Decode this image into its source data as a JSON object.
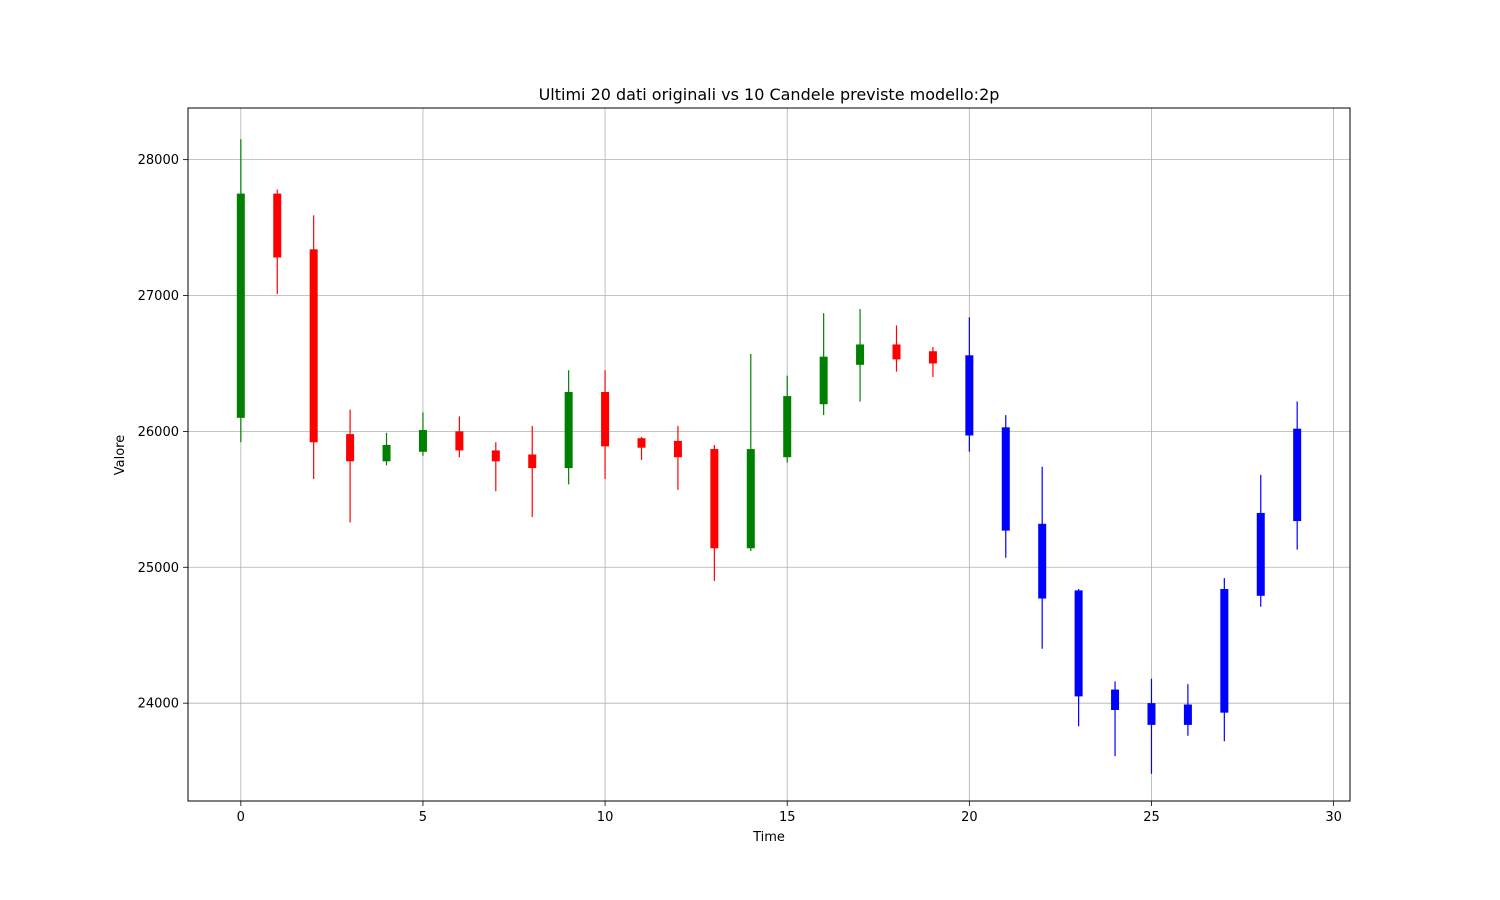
{
  "chart_data": {
    "type": "candlestick",
    "title": "Ultimi 20 dati originali vs 10 Candele previste modello:2p",
    "xlabel": "Time",
    "ylabel": "Valore",
    "xlim": [
      -1.45,
      30.45
    ],
    "ylim": [
      23280,
      28380
    ],
    "xticks": [
      0,
      5,
      10,
      15,
      20,
      25,
      30
    ],
    "yticks": [
      24000,
      25000,
      26000,
      27000,
      28000
    ],
    "grid": true,
    "colors": {
      "up": "#008000",
      "down": "#ff0000",
      "forecast": "#0000ff"
    },
    "candles": [
      {
        "t": 0,
        "open": 26100,
        "close": 27750,
        "high": 28150,
        "low": 25920,
        "kind": "up"
      },
      {
        "t": 1,
        "open": 27750,
        "close": 27280,
        "high": 27780,
        "low": 27010,
        "kind": "down"
      },
      {
        "t": 2,
        "open": 27340,
        "close": 25920,
        "high": 27590,
        "low": 25650,
        "kind": "down"
      },
      {
        "t": 3,
        "open": 25980,
        "close": 25780,
        "high": 26160,
        "low": 25330,
        "kind": "down"
      },
      {
        "t": 4,
        "open": 25780,
        "close": 25900,
        "high": 25990,
        "low": 25750,
        "kind": "up"
      },
      {
        "t": 5,
        "open": 25850,
        "close": 26010,
        "high": 26140,
        "low": 25820,
        "kind": "up"
      },
      {
        "t": 6,
        "open": 26000,
        "close": 25860,
        "high": 26110,
        "low": 25810,
        "kind": "down"
      },
      {
        "t": 7,
        "open": 25860,
        "close": 25780,
        "high": 25920,
        "low": 25560,
        "kind": "down"
      },
      {
        "t": 8,
        "open": 25830,
        "close": 25730,
        "high": 26040,
        "low": 25370,
        "kind": "down"
      },
      {
        "t": 9,
        "open": 25730,
        "close": 26290,
        "high": 26450,
        "low": 25610,
        "kind": "up"
      },
      {
        "t": 10,
        "open": 26290,
        "close": 25890,
        "high": 26450,
        "low": 25650,
        "kind": "down"
      },
      {
        "t": 11,
        "open": 25950,
        "close": 25880,
        "high": 25960,
        "low": 25790,
        "kind": "down"
      },
      {
        "t": 12,
        "open": 25930,
        "close": 25810,
        "high": 26040,
        "low": 25570,
        "kind": "down"
      },
      {
        "t": 13,
        "open": 25870,
        "close": 25140,
        "high": 25900,
        "low": 24900,
        "kind": "down"
      },
      {
        "t": 14,
        "open": 25140,
        "close": 25870,
        "high": 26570,
        "low": 25120,
        "kind": "up"
      },
      {
        "t": 15,
        "open": 25810,
        "close": 26260,
        "high": 26410,
        "low": 25770,
        "kind": "up"
      },
      {
        "t": 16,
        "open": 26200,
        "close": 26550,
        "high": 26870,
        "low": 26120,
        "kind": "up"
      },
      {
        "t": 17,
        "open": 26490,
        "close": 26640,
        "high": 26900,
        "low": 26220,
        "kind": "up"
      },
      {
        "t": 18,
        "open": 26640,
        "close": 26530,
        "high": 26780,
        "low": 26440,
        "kind": "down"
      },
      {
        "t": 19,
        "open": 26590,
        "close": 26500,
        "high": 26620,
        "low": 26400,
        "kind": "down"
      },
      {
        "t": 20,
        "open": 26560,
        "close": 25970,
        "high": 26840,
        "low": 25850,
        "kind": "forecast"
      },
      {
        "t": 21,
        "open": 26030,
        "close": 25270,
        "high": 26120,
        "low": 25070,
        "kind": "forecast"
      },
      {
        "t": 22,
        "open": 25320,
        "close": 24770,
        "high": 25740,
        "low": 24400,
        "kind": "forecast"
      },
      {
        "t": 23,
        "open": 24830,
        "close": 24050,
        "high": 24840,
        "low": 23830,
        "kind": "forecast"
      },
      {
        "t": 24,
        "open": 24100,
        "close": 23950,
        "high": 24160,
        "low": 23610,
        "kind": "forecast"
      },
      {
        "t": 25,
        "open": 24000,
        "close": 23840,
        "high": 24180,
        "low": 23480,
        "kind": "forecast"
      },
      {
        "t": 26,
        "open": 23990,
        "close": 23840,
        "high": 24140,
        "low": 23760,
        "kind": "forecast"
      },
      {
        "t": 27,
        "open": 24840,
        "close": 23930,
        "high": 24920,
        "low": 23720,
        "kind": "forecast"
      },
      {
        "t": 28,
        "open": 25400,
        "close": 24790,
        "high": 25680,
        "low": 24710,
        "kind": "forecast"
      },
      {
        "t": 29,
        "open": 26020,
        "close": 25340,
        "high": 26220,
        "low": 25130,
        "kind": "forecast"
      }
    ]
  }
}
